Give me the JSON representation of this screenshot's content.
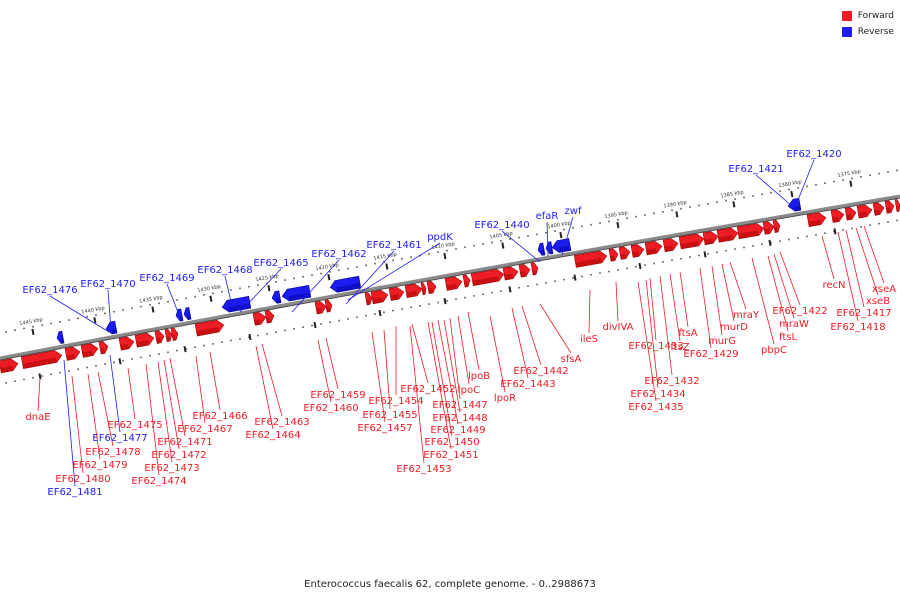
{
  "caption": "Enterococcus faecalis 62, complete genome. - 0..2988673",
  "legend": [
    {
      "label": "Forward",
      "color": "#ee1c24"
    },
    {
      "label": "Reverse",
      "color": "#1c1cee"
    }
  ],
  "colors": {
    "forward": "#ee1c24",
    "forward_dark": "#9e0000",
    "reverse": "#1c1cee",
    "reverse_dark": "#00009e",
    "backbone": "#8a8a8a",
    "tick": "#222222",
    "dots": "#555555"
  },
  "ticks": [
    "1375 kbp",
    "1380 kbp",
    "1385 kbp",
    "1390 kbp",
    "1395 kbp",
    "1400 kbp",
    "1405 kbp",
    "1410 kbp",
    "1415 kbp",
    "1420 kbp",
    "1425 kbp",
    "1430 kbp",
    "1435 kbp",
    "1440 kbp",
    "1445 kbp"
  ],
  "reverse_genes": [
    "EF62_1420",
    "EF62_1421",
    "EF62_1440",
    "efaR",
    "zwf",
    "ppdK",
    "EF62_1461",
    "EF62_1462",
    "EF62_1465",
    "EF62_1468",
    "EF62_1469",
    "EF62_1470",
    "EF62_1476",
    "EF62_1477",
    "EF62_1481"
  ],
  "forward_genes": [
    "xseA",
    "xseB",
    "EF62_1417",
    "EF62_1418",
    "recN",
    "EF62_1422",
    "mraW",
    "ftsL",
    "pbpC",
    "mraY",
    "murD",
    "murG",
    "EF62_1429",
    "ftsA",
    "ftsZ",
    "EF62_1432",
    "EF62_1433",
    "EF62_1434",
    "EF62_1435",
    "divIVA",
    "ileS",
    "sfsA",
    "EF62_1442",
    "EF62_1443",
    "lpoB",
    "lpoR",
    "lpoC",
    "EF62_1447",
    "EF62_1448",
    "EF62_1449",
    "EF62_1450",
    "EF62_1451",
    "EF62_1452",
    "EF62_1453",
    "EF62_1454",
    "EF62_1455",
    "EF62_1457",
    "EF62_1459",
    "EF62_1460",
    "EF62_1463",
    "EF62_1464",
    "EF62_1466",
    "EF62_1467",
    "EF62_1471",
    "EF62_1472",
    "EF62_1473",
    "EF62_1474",
    "EF62_1475",
    "EF62_1478",
    "EF62_1479",
    "EF62_1480",
    "dnaE"
  ]
}
